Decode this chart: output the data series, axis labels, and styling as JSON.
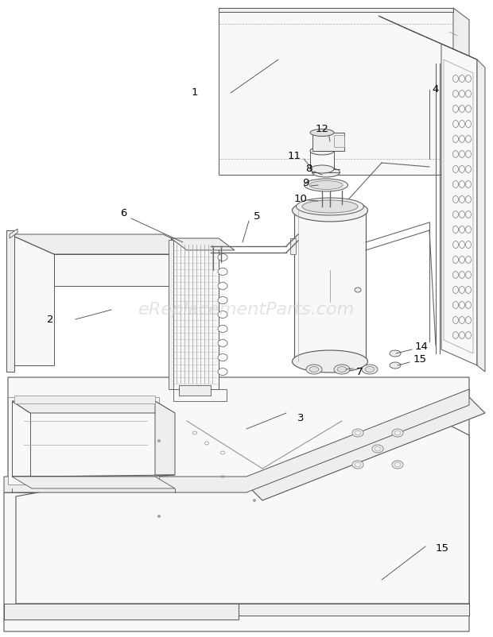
{
  "background_color": "#ffffff",
  "line_color": "#555555",
  "thin_line": "#777777",
  "fill_light": "#f8f8f8",
  "fill_mid": "#eeeeee",
  "fill_dark": "#e0e0e0",
  "watermark_text": "eReplacementParts.com",
  "watermark_color": "#cccccc",
  "watermark_fontsize": 16,
  "label_fontsize": 9.5,
  "figsize": [
    6.2,
    8.02
  ],
  "dpi": 100
}
